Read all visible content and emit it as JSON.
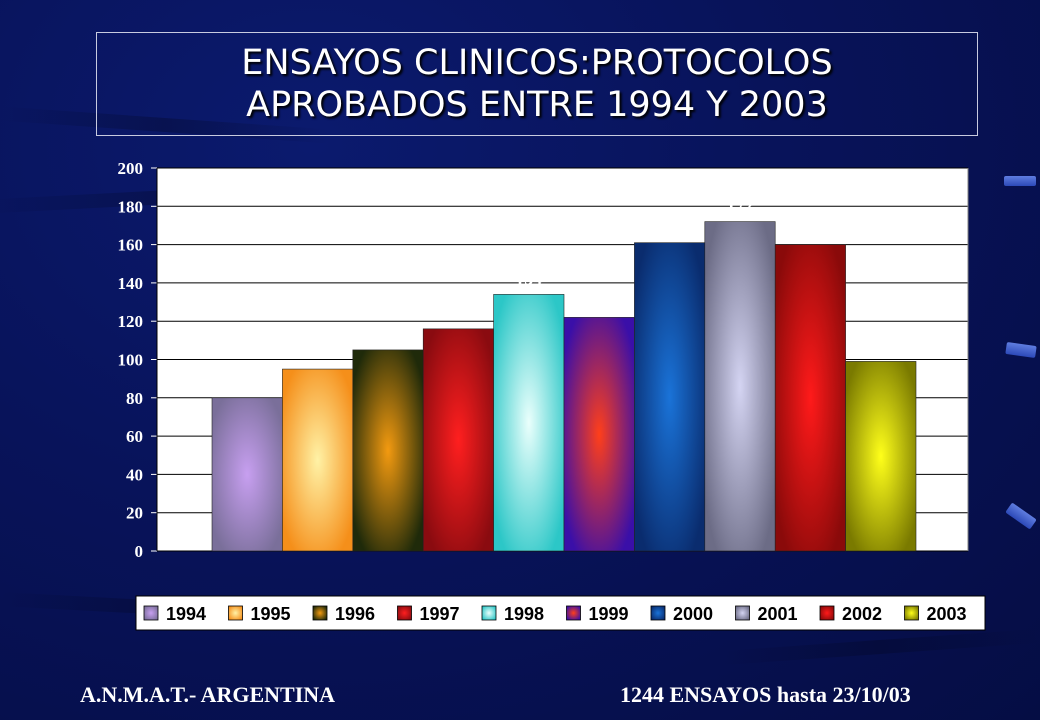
{
  "title": {
    "line1": "ENSAYOS CLINICOS:PROTOCOLOS",
    "line2": "APROBADOS  ENTRE 1994 Y 2003"
  },
  "footer": {
    "left": "A.N.M.A.T.- ARGENTINA",
    "right": "1244 ENSAYOS  hasta 23/10/03"
  },
  "chart_data": {
    "type": "bar",
    "categories": [
      "1994",
      "1995",
      "1996",
      "1997",
      "1998",
      "1999",
      "2000",
      "2001",
      "2002",
      "2003"
    ],
    "values": [
      80,
      95,
      105,
      116,
      134,
      122,
      161,
      172,
      160,
      99
    ],
    "data_labels": [
      "80",
      "95",
      "105",
      "116",
      "134",
      "122",
      "161",
      "172",
      "160",
      "99"
    ],
    "ylim": [
      0,
      200
    ],
    "yticks": [
      0,
      20,
      40,
      60,
      80,
      100,
      120,
      140,
      160,
      180,
      200
    ],
    "ytick_labels": [
      "0",
      "20",
      "40",
      "60",
      "80",
      "100",
      "120",
      "140",
      "160",
      "180",
      "200"
    ],
    "grid": true,
    "legend_position": "bottom",
    "legend": [
      "1994",
      "1995",
      "1996",
      "1997",
      "1998",
      "1999",
      "2000",
      "2001",
      "2002",
      "2003"
    ],
    "bar_colors": [
      {
        "edge": "#7a6f9a",
        "center": "#c79ff0"
      },
      {
        "edge": "#f58f1a",
        "center": "#fff2a6"
      },
      {
        "edge": "#1f2a0a",
        "center": "#f39a10"
      },
      {
        "edge": "#8a0b10",
        "center": "#ff1f1f"
      },
      {
        "edge": "#2cc7c7",
        "center": "#eafffc"
      },
      {
        "edge": "#3a0fa8",
        "center": "#ff3f1a"
      },
      {
        "edge": "#0a2c6e",
        "center": "#1a73d8"
      },
      {
        "edge": "#6c6c86",
        "center": "#d4d4f2"
      },
      {
        "edge": "#8a0a0a",
        "center": "#ff1a1a"
      },
      {
        "edge": "#7a7a00",
        "center": "#ffff1a"
      }
    ],
    "plot_background": "#ffffff",
    "grid_color": "#000000"
  }
}
